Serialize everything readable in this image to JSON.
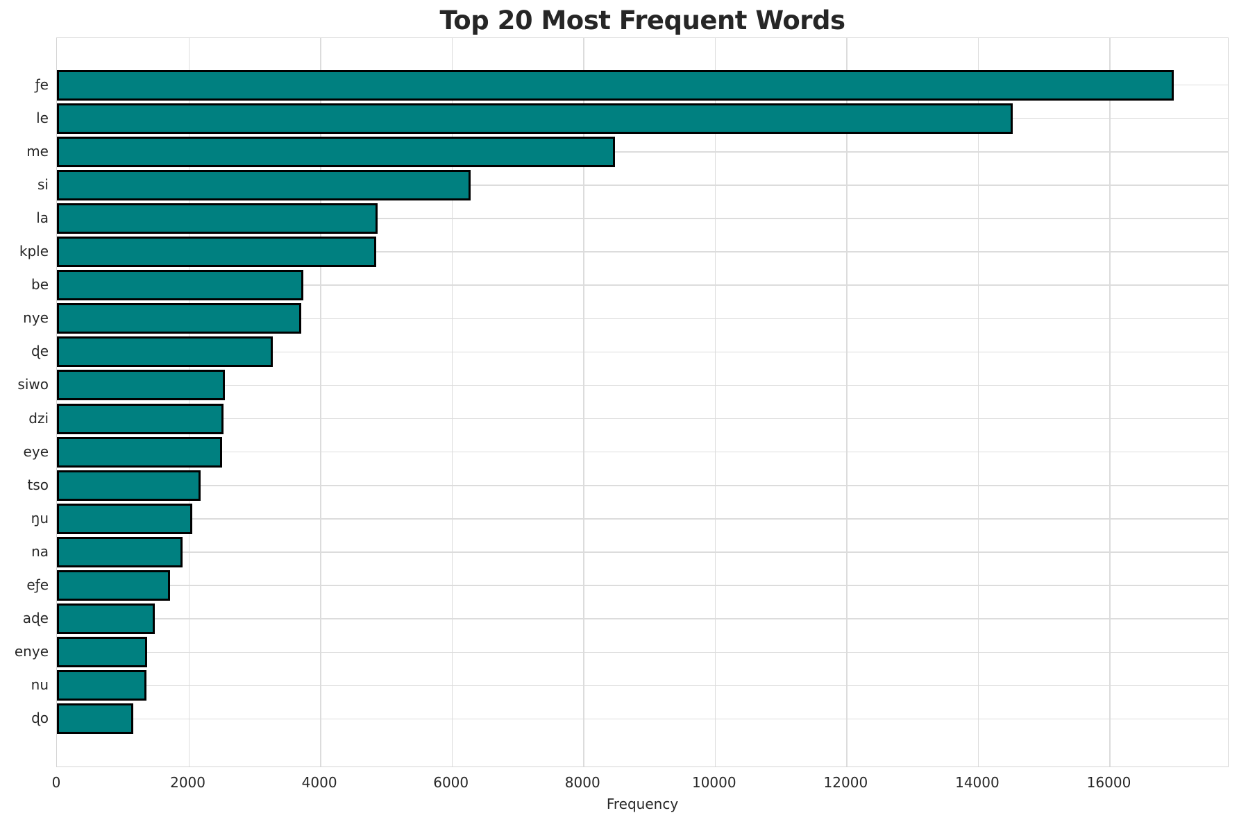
{
  "chart_data": {
    "type": "bar",
    "orientation": "horizontal",
    "title": "Top 20 Most Frequent Words",
    "xlabel": "Frequency",
    "ylabel": "",
    "categories": [
      "ƒe",
      "le",
      "me",
      "si",
      "la",
      "kple",
      "be",
      "nye",
      "ɖe",
      "siwo",
      "dzi",
      "eye",
      "tso",
      "ŋu",
      "na",
      "eƒe",
      "aɖe",
      "enye",
      "nu",
      "ɖo"
    ],
    "values": [
      16980,
      14530,
      8480,
      6290,
      4870,
      4850,
      3750,
      3710,
      3280,
      2550,
      2530,
      2510,
      2180,
      2060,
      1910,
      1720,
      1490,
      1370,
      1360,
      1160
    ],
    "xticks": [
      0,
      2000,
      4000,
      6000,
      8000,
      10000,
      12000,
      14000,
      16000
    ],
    "xlim": [
      0,
      17820
    ],
    "grid": true,
    "legend": "none",
    "colors": {
      "bar_fill": "#008080",
      "bar_edge": "#000000",
      "grid": "#dcdcdc",
      "spine": "#d4d4d4",
      "text": "#262626"
    }
  }
}
